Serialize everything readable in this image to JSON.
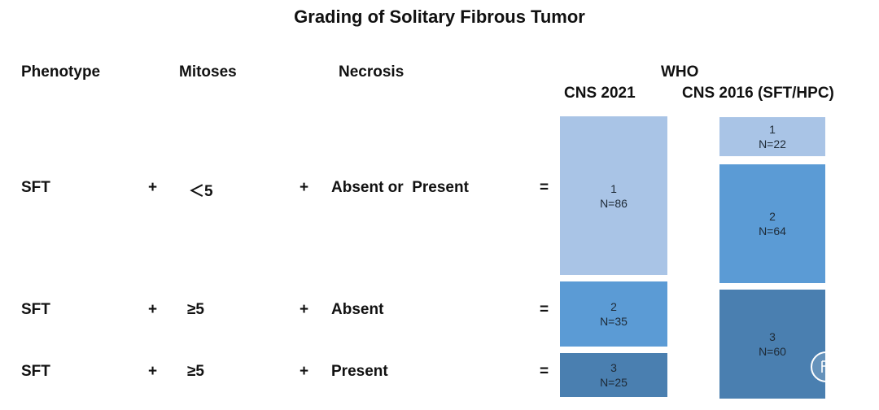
{
  "title": "Grading of Solitary Fibrous Tumor",
  "headers": {
    "phenotype": "Phenotype",
    "mitoses": "Mitoses",
    "necrosis": "Necrosis",
    "who": "WHO",
    "cns2021": "CNS 2021",
    "cns2016": "CNS 2016 (SFT/HPC)"
  },
  "rows": [
    {
      "phenotype": "SFT",
      "plus1": "+",
      "mitoses": "＜5",
      "plus2": "+",
      "necrosis": "Absent or  Present",
      "equals": "="
    },
    {
      "phenotype": "SFT",
      "plus1": "+",
      "mitoses": "≥5",
      "plus2": "+",
      "necrosis": "Absent",
      "equals": "="
    },
    {
      "phenotype": "SFT",
      "plus1": "+",
      "mitoses": "≥5",
      "plus2": "+",
      "necrosis": "Present",
      "equals": "="
    }
  ],
  "cns2021_grades": [
    {
      "grade": "1",
      "n": "N=86",
      "count": 86
    },
    {
      "grade": "2",
      "n": "N=35",
      "count": 35
    },
    {
      "grade": "3",
      "n": "N=25",
      "count": 25
    }
  ],
  "cns2016_grades": [
    {
      "grade": "1",
      "n": "N=22",
      "count": 22
    },
    {
      "grade": "2",
      "n": "N=64",
      "count": 64
    },
    {
      "grade": "3",
      "n": "N=60",
      "count": 60
    }
  ],
  "colors": {
    "grade1": "#a9c4e6",
    "grade2": "#5b9bd5",
    "grade3": "#4a7fb0"
  }
}
